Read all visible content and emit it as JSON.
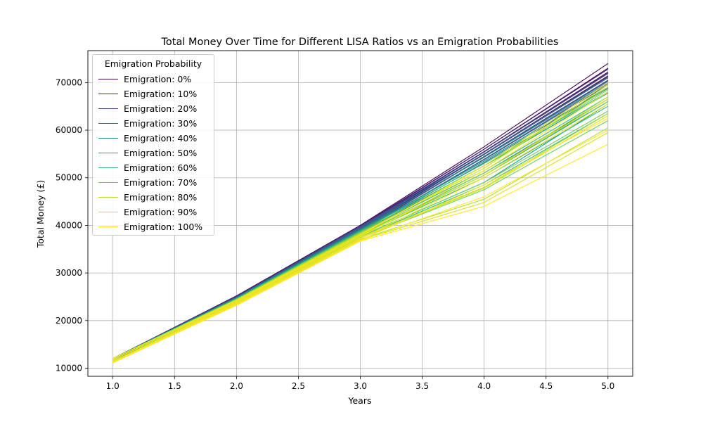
{
  "chart_data": {
    "type": "line",
    "title": "Total Money Over Time for Different LISA Ratios vs an Emigration Probabilities",
    "xlabel": "Years",
    "ylabel": "Total Money (£)",
    "xlim": [
      0.8,
      5.2
    ],
    "ylim": [
      8300,
      76700
    ],
    "xticks": [
      "1.0",
      "1.5",
      "2.0",
      "2.5",
      "3.0",
      "3.5",
      "4.0",
      "4.5",
      "5.0"
    ],
    "yticks": [
      "10000",
      "20000",
      "30000",
      "40000",
      "50000",
      "60000",
      "70000"
    ],
    "grid": true,
    "legend": {
      "title": "Emigration Probability",
      "placement": "upper-left",
      "entries": [
        "Emigration: 0%",
        "Emigration: 10%",
        "Emigration: 20%",
        "Emigration: 30%",
        "Emigration: 40%",
        "Emigration: 50%",
        "Emigration: 60%",
        "Emigration: 70%",
        "Emigration: 80%",
        "Emigration: 90%",
        "Emigration: 100%"
      ]
    },
    "x": [
      1,
      2,
      3,
      4,
      5
    ],
    "series": [
      {
        "name": "Emigration: 0%",
        "color": "#440154",
        "lines": [
          [
            12000,
            25200,
            40000,
            56500,
            74000
          ],
          [
            11700,
            24900,
            39700,
            56000,
            73000
          ],
          [
            11400,
            24600,
            39300,
            55500,
            72200
          ],
          [
            11100,
            24300,
            39000,
            55000,
            71400
          ]
        ]
      },
      {
        "name": "Emigration: 10%",
        "color": "#482878",
        "lines": [
          [
            12000,
            25100,
            39900,
            56000,
            72800
          ],
          [
            11700,
            24800,
            39500,
            55400,
            71900
          ],
          [
            11400,
            24500,
            39100,
            54900,
            71000
          ],
          [
            11100,
            24200,
            38800,
            54400,
            70300
          ]
        ]
      },
      {
        "name": "Emigration: 20%",
        "color": "#3e4989",
        "lines": [
          [
            12000,
            25000,
            39700,
            55500,
            72000
          ],
          [
            11700,
            24700,
            39300,
            55000,
            71200
          ],
          [
            11400,
            24400,
            39000,
            54500,
            70500
          ],
          [
            11100,
            24100,
            38600,
            53900,
            69800
          ]
        ]
      },
      {
        "name": "Emigration: 30%",
        "color": "#31688e",
        "lines": [
          [
            12000,
            24900,
            39500,
            55000,
            71000
          ],
          [
            11700,
            24600,
            39100,
            54400,
            70300
          ],
          [
            11400,
            24300,
            38700,
            53800,
            69500
          ],
          [
            11100,
            24000,
            38400,
            53200,
            68800
          ]
        ]
      },
      {
        "name": "Emigration: 40%",
        "color": "#26828e",
        "lines": [
          [
            12000,
            24800,
            39200,
            54300,
            70000
          ],
          [
            11700,
            24500,
            38800,
            53500,
            69000
          ],
          [
            11400,
            24200,
            38400,
            52500,
            67800
          ],
          [
            11100,
            23900,
            38000,
            51000,
            66500
          ]
        ]
      },
      {
        "name": "Emigration: 50%",
        "color": "#1f9e89",
        "lines": [
          [
            12000,
            24700,
            39000,
            53500,
            69000
          ],
          [
            11700,
            24400,
            38600,
            52500,
            67800
          ],
          [
            11400,
            24100,
            38100,
            50500,
            66000
          ],
          [
            11100,
            23800,
            37700,
            49000,
            65500
          ]
        ]
      },
      {
        "name": "Emigration: 60%",
        "color": "#35b779",
        "lines": [
          [
            12000,
            24600,
            38800,
            53000,
            68000
          ],
          [
            11700,
            24300,
            38300,
            51500,
            67000
          ],
          [
            11400,
            24000,
            37900,
            50000,
            65000
          ],
          [
            11100,
            23700,
            37500,
            48500,
            63500
          ]
        ]
      },
      {
        "name": "Emigration: 70%",
        "color": "#6ece58",
        "lines": [
          [
            12000,
            24500,
            38600,
            52500,
            68500
          ],
          [
            11700,
            24200,
            38100,
            51000,
            66000
          ],
          [
            11400,
            23900,
            37700,
            49000,
            64000
          ],
          [
            11100,
            23600,
            37300,
            47500,
            62000
          ]
        ]
      },
      {
        "name": "Emigration: 80%",
        "color": "#b5de2b",
        "lines": [
          [
            12000,
            24400,
            38400,
            52000,
            69000
          ],
          [
            11700,
            24100,
            38000,
            50500,
            67000
          ],
          [
            11400,
            23800,
            37500,
            48000,
            63500
          ],
          [
            11100,
            23500,
            37100,
            45500,
            60500
          ]
        ]
      },
      {
        "name": "Emigration: 90%",
        "color": "#d8e219",
        "lines": [
          [
            12000,
            24300,
            38200,
            52000,
            69500
          ],
          [
            11700,
            24000,
            37800,
            50500,
            66500
          ],
          [
            11400,
            23700,
            37300,
            47800,
            63000
          ],
          [
            11100,
            23400,
            36900,
            44800,
            59500
          ]
        ]
      },
      {
        "name": "Emigration: 100%",
        "color": "#fde725",
        "lines": [
          [
            12000,
            24200,
            38000,
            52500,
            70000
          ],
          [
            11700,
            23900,
            37600,
            51500,
            68000
          ],
          [
            11400,
            23600,
            37200,
            50000,
            65500
          ],
          [
            11300,
            23400,
            36900,
            48500,
            62500
          ],
          [
            11200,
            23300,
            36800,
            46000,
            60000
          ],
          [
            11100,
            23200,
            36700,
            44000,
            57000
          ]
        ]
      }
    ]
  }
}
